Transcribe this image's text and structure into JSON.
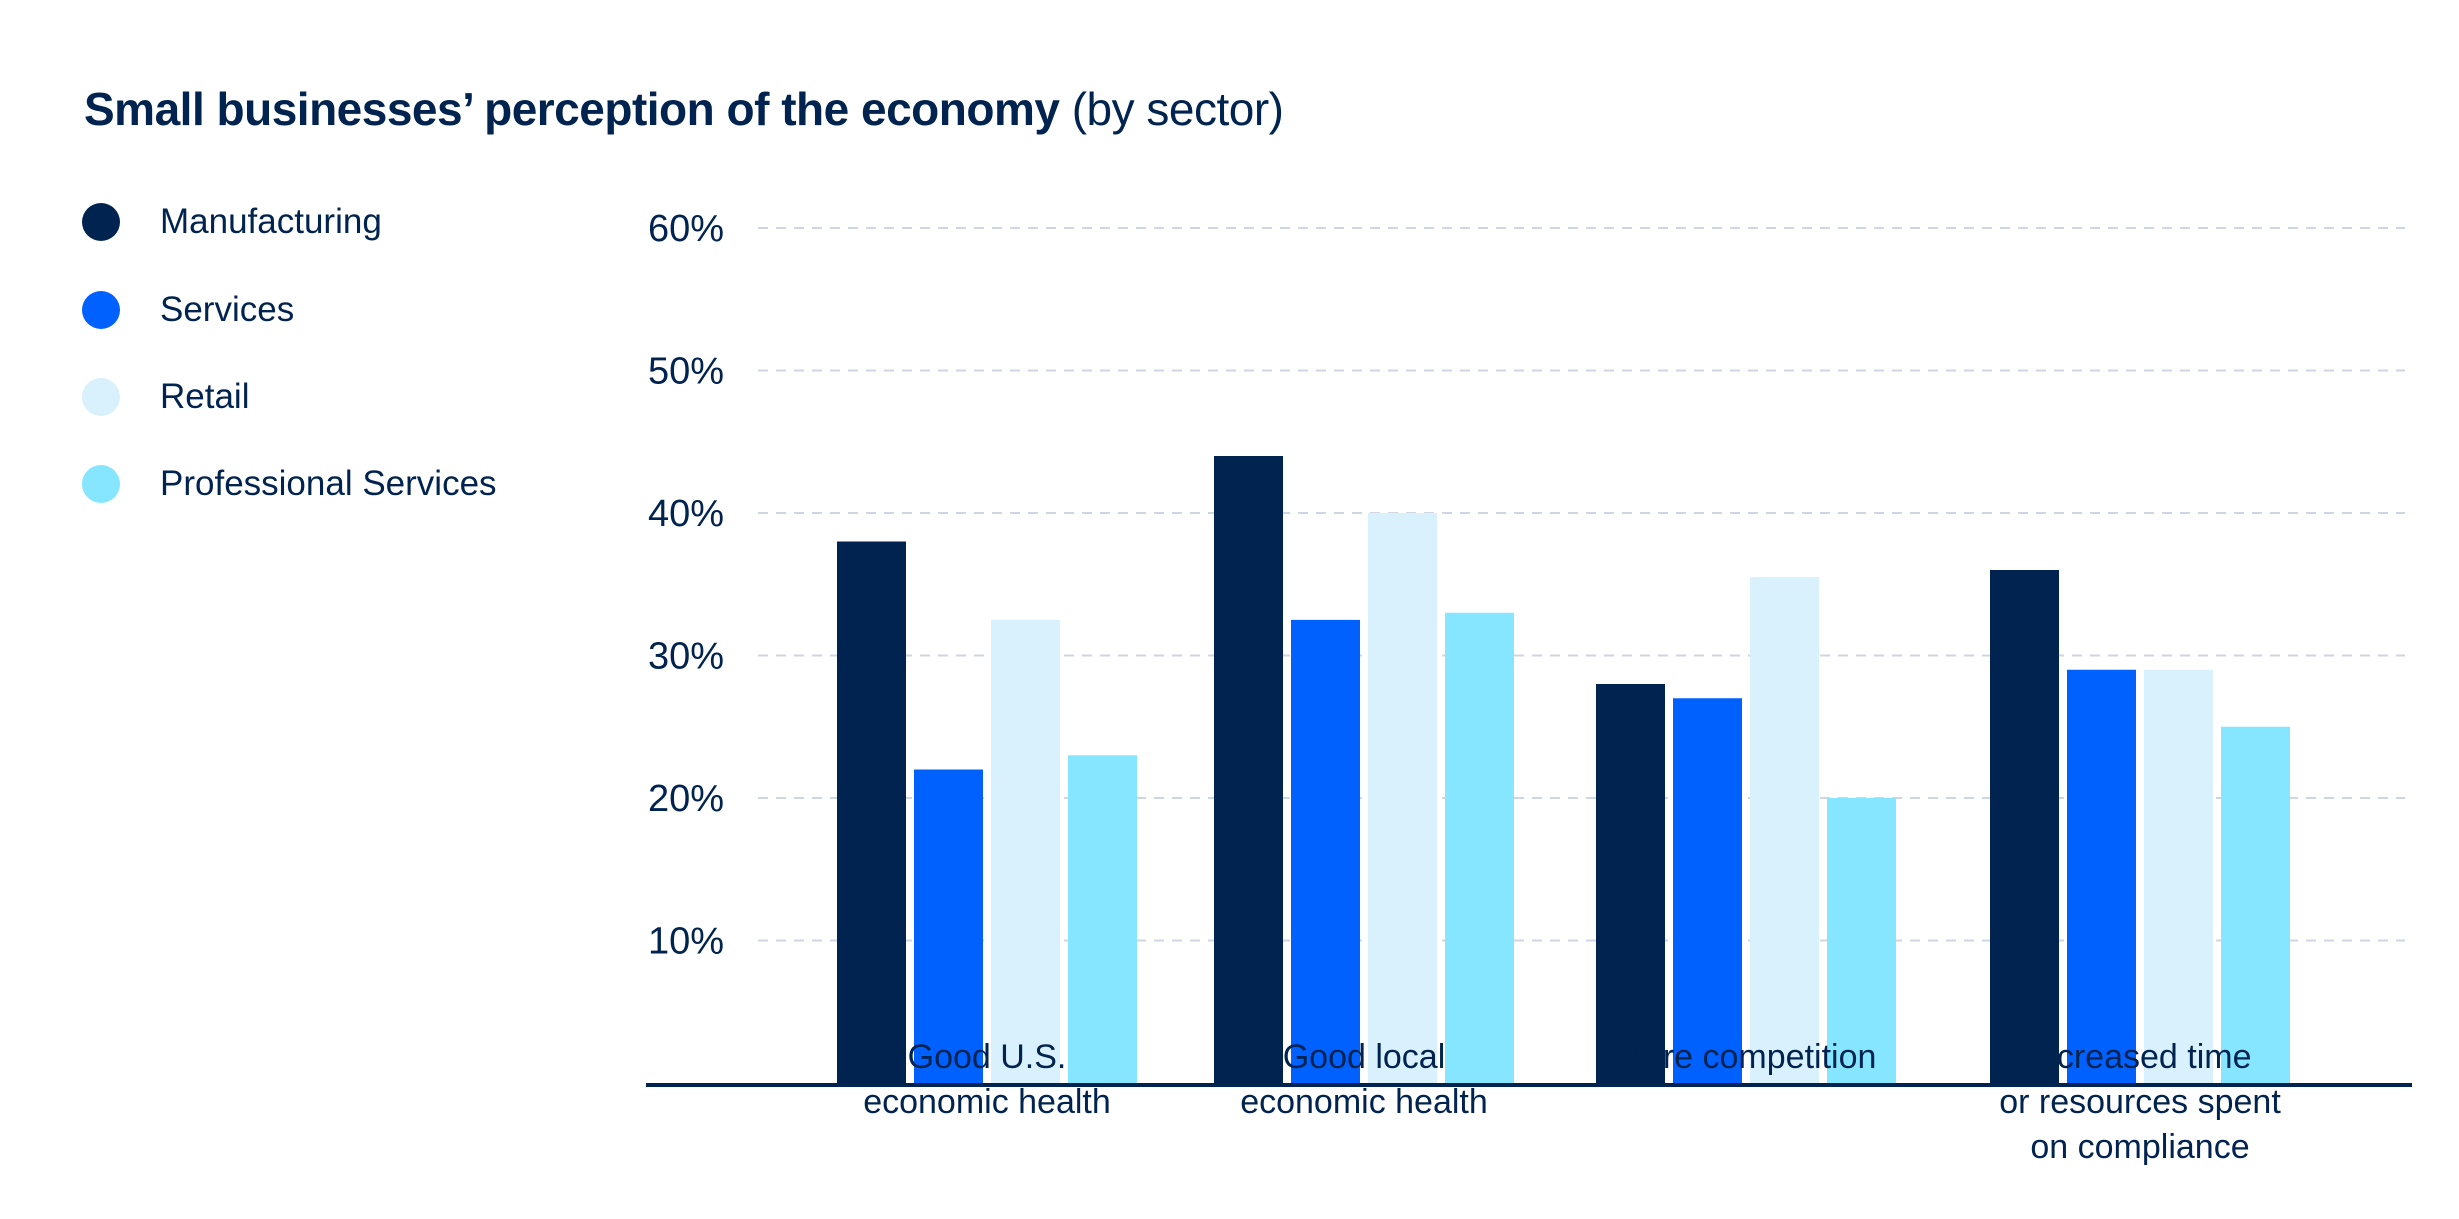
{
  "chart_data": {
    "type": "bar",
    "title": "Small businesses’ perception of the economy",
    "subtitle": "(by sector)",
    "categories": [
      [
        "Good U.S.",
        "economic health"
      ],
      [
        "Good local",
        "economic health"
      ],
      [
        "More competition"
      ],
      [
        "Increased time",
        "or resources spent",
        "on compliance"
      ]
    ],
    "series": [
      {
        "name": "Manufacturing",
        "color": "#00234f",
        "values": [
          38,
          44,
          28,
          36
        ]
      },
      {
        "name": "Services",
        "color": "#0061ff",
        "values": [
          22,
          32.5,
          27,
          29
        ]
      },
      {
        "name": "Retail",
        "color": "#d9f0fd",
        "values": [
          32.5,
          40,
          35.5,
          29
        ]
      },
      {
        "name": "Professional Services",
        "color": "#86e6ff",
        "values": [
          23,
          33,
          20,
          25
        ]
      }
    ],
    "yticks": [
      "10%",
      "20%",
      "30%",
      "40%",
      "50%",
      "60%"
    ],
    "ytick_values": [
      10,
      20,
      30,
      40,
      50,
      60
    ],
    "ylim": [
      0,
      60
    ],
    "xlabel": "",
    "ylabel": "",
    "grid": true,
    "legend_position": "left"
  }
}
